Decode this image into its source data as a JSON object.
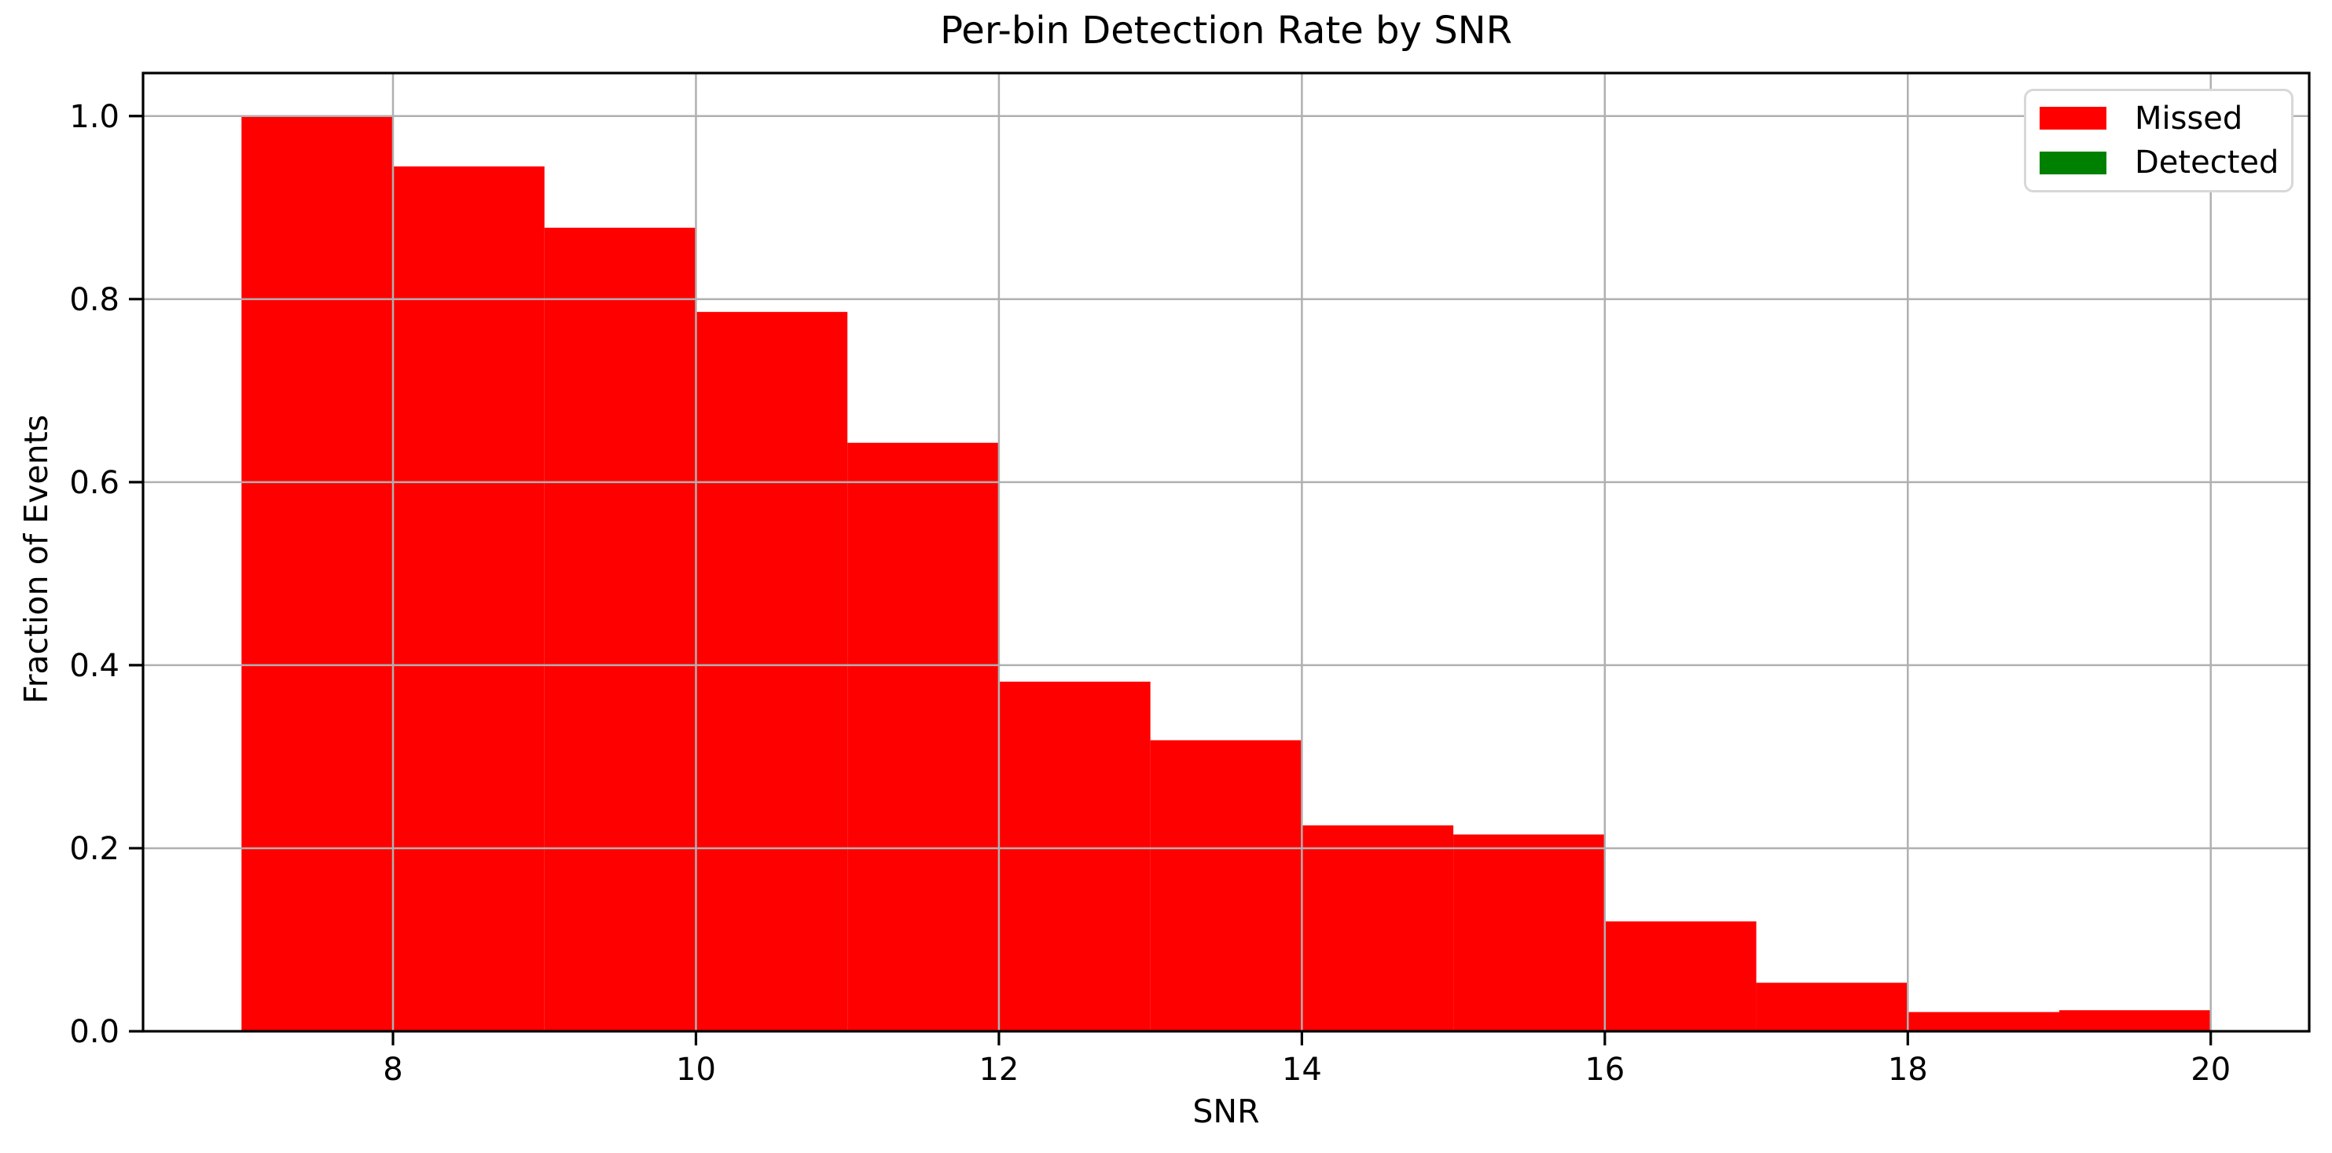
{
  "chart_data": {
    "type": "bar",
    "subtype": "histogram",
    "title": "Per-bin Detection Rate by SNR",
    "xlabel": "SNR",
    "ylabel": "Fraction of Events",
    "bin_edges": [
      7,
      8,
      9,
      10,
      11,
      12,
      13,
      14,
      15,
      16,
      17,
      18,
      19,
      20
    ],
    "series": [
      {
        "name": "Missed",
        "color": "#ff0000",
        "values": [
          1.0,
          0.945,
          0.878,
          0.786,
          0.643,
          0.382,
          0.318,
          0.225,
          0.215,
          0.12,
          0.053,
          0.021,
          0.023
        ]
      },
      {
        "name": "Detected",
        "color": "#008000",
        "values": [
          0,
          0,
          0,
          0,
          0,
          0,
          0,
          0,
          0,
          0,
          0,
          0,
          0
        ]
      }
    ],
    "xticks": {
      "values": [
        8,
        10,
        12,
        14,
        16,
        18,
        20
      ],
      "labels": [
        "8",
        "10",
        "12",
        "14",
        "16",
        "18",
        "20"
      ]
    },
    "yticks": {
      "values": [
        0.0,
        0.2,
        0.4,
        0.6,
        0.8,
        1.0
      ],
      "labels": [
        "0.0",
        "0.2",
        "0.4",
        "0.6",
        "0.8",
        "1.0"
      ]
    },
    "xlim": [
      6.35,
      20.65
    ],
    "ylim": [
      0,
      1.047
    ],
    "grid": true,
    "grid_color": "#b0b0b0",
    "spine_color": "#000000",
    "background": "#ffffff",
    "legend": {
      "position": "upper right",
      "entries": [
        {
          "label": "Missed",
          "color": "#ff0000"
        },
        {
          "label": "Detected",
          "color": "#008000"
        }
      ]
    }
  }
}
